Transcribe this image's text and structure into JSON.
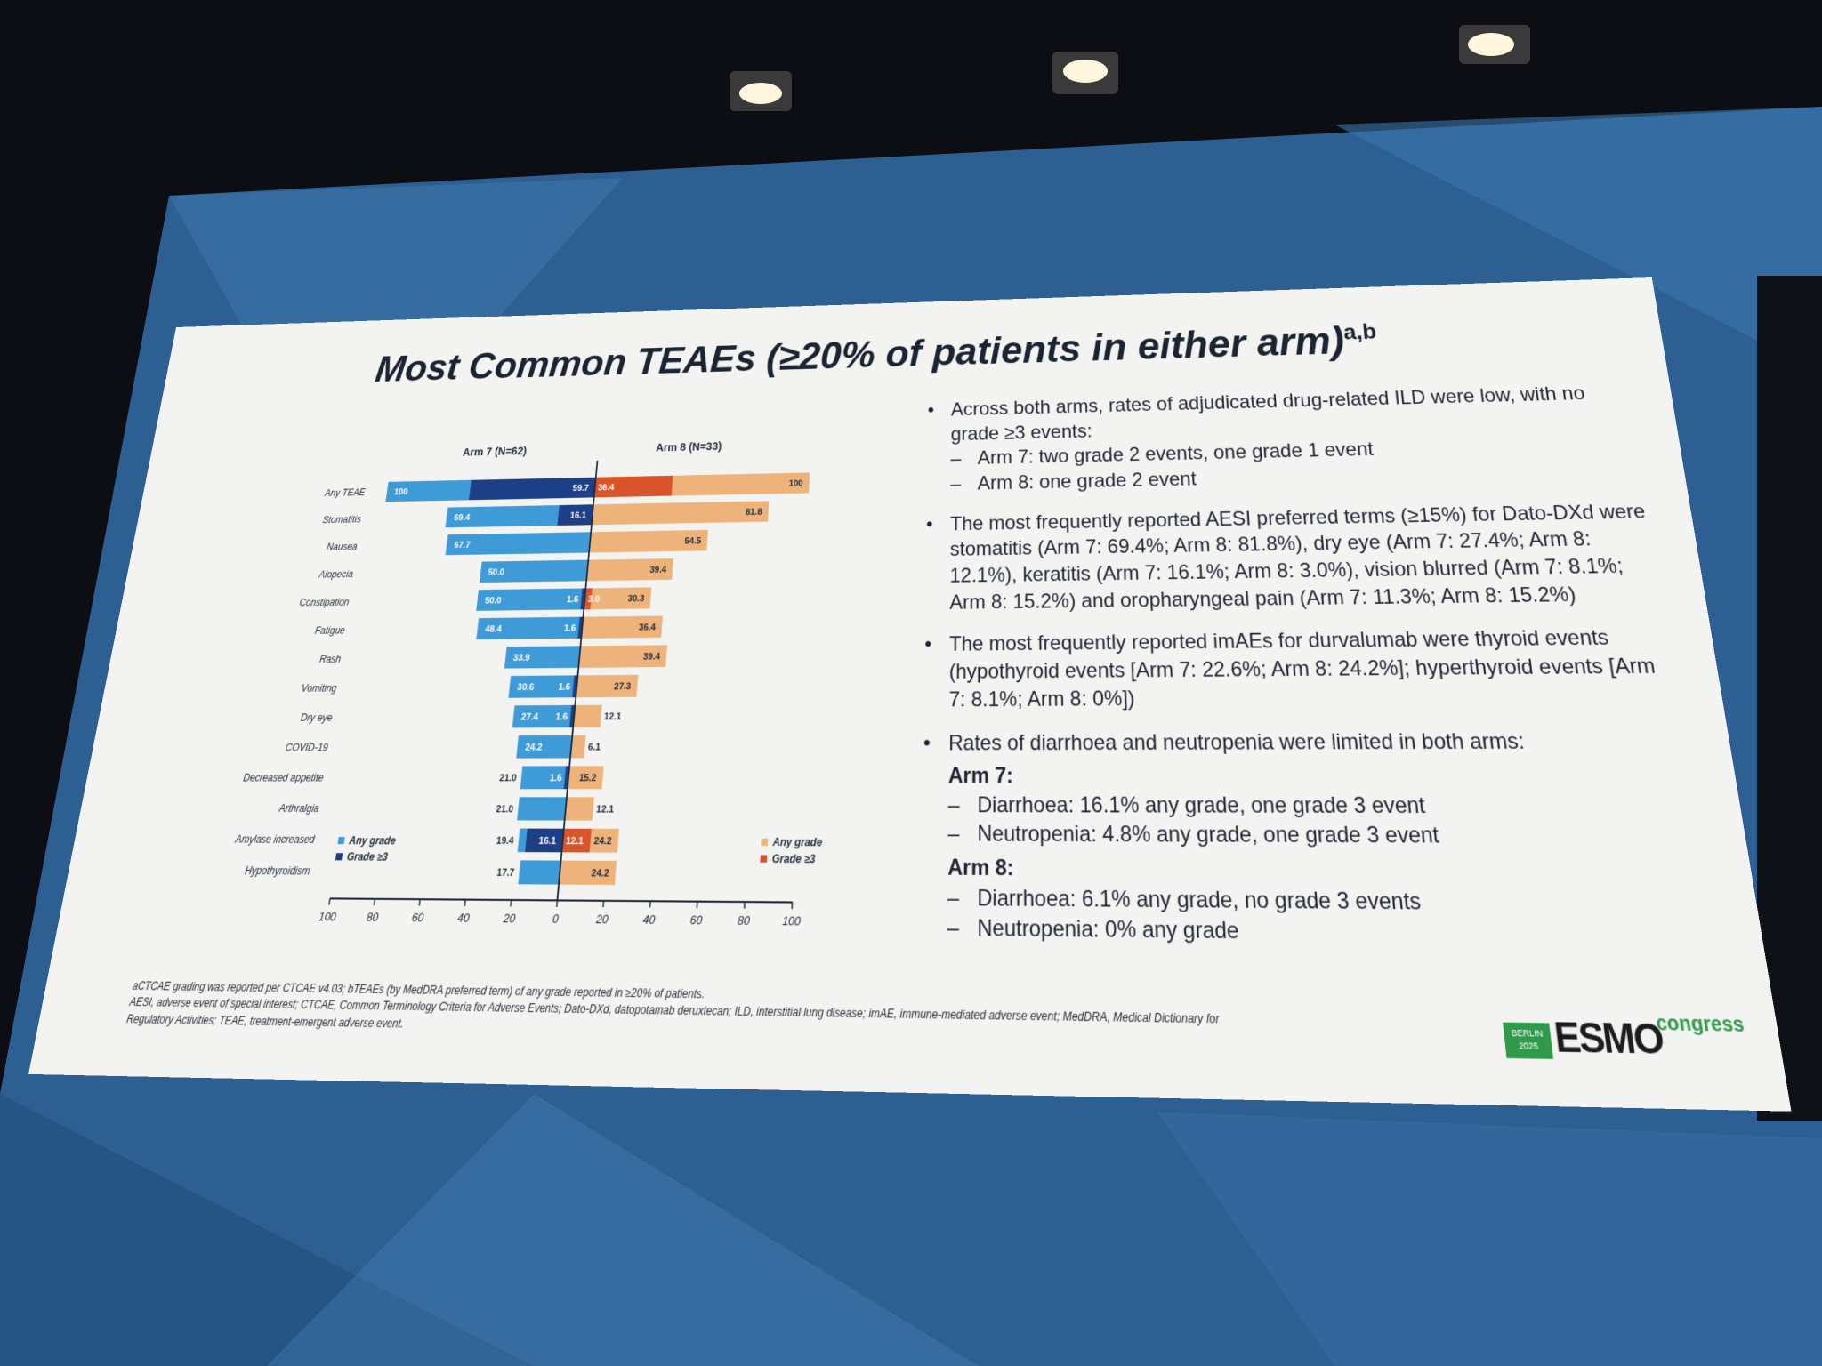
{
  "slide": {
    "title": "Most Common TEAEs (≥20% of patients in either arm)",
    "title_sup": "a,b",
    "bullets": [
      {
        "text": "Across both arms, rates of adjudicated drug-related ILD were low, with no grade ≥3 events:",
        "subs": [
          "Arm 7: two grade 2 events, one grade 1 event",
          "Arm 8: one grade 2 event"
        ]
      },
      {
        "text": "The most frequently reported AESI preferred terms (≥15%) for Dato-DXd were stomatitis (Arm 7: 69.4%; Arm 8: 81.8%), dry eye (Arm 7: 27.4%; Arm 8: 12.1%), keratitis (Arm 7: 16.1%; Arm 8: 3.0%), vision blurred (Arm 7: 8.1%; Arm 8: 15.2%) and oropharyngeal pain (Arm 7: 11.3%; Arm 8: 15.2%)",
        "subs": []
      },
      {
        "text": "The most frequently reported imAEs for durvalumab were thyroid events (hypothyroid events [Arm 7: 22.6%; Arm 8: 24.2%]; hyperthyroid events [Arm 7: 8.1%; Arm 8: 0%])",
        "subs": []
      }
    ],
    "bullet4": {
      "text": "Rates of diarrhoea and neutropenia were limited in both arms:",
      "arm7_heading": "Arm 7:",
      "arm7_items": [
        "Diarrhoea: 16.1% any grade, one grade 3 event",
        "Neutropenia: 4.8% any grade, one grade 3 event"
      ],
      "arm8_heading": "Arm 8:",
      "arm8_items": [
        "Diarrhoea: 6.1% any grade, no grade 3 events",
        "Neutropenia: 0% any grade"
      ]
    },
    "footnote1": "aCTCAE grading was reported per CTCAE v4.03; bTEAEs (by MedDRA preferred term) of any grade reported in ≥20% of patients.",
    "footnote2": "AESI, adverse event of special interest; CTCAE, Common Terminology Criteria for Adverse Events; Dato-DXd, datopotamab deruxtecan; ILD, interstitial lung disease; imAE, immune-mediated adverse event; MedDRA, Medical Dictionary for Regulatory Activities; TEAE, treatment-emergent adverse event.",
    "logo": {
      "badge_line1": "BERLIN",
      "badge_line2": "2025",
      "name": "ESMO",
      "suffix": "congress"
    }
  },
  "colors": {
    "arm7_any": "#3f9ad8",
    "arm7_g3": "#1d3f86",
    "arm8_any": "#eeb37a",
    "arm8_g3": "#d9542a",
    "axis": "#1f2a3a"
  },
  "chart_data": {
    "type": "bar",
    "orientation": "horizontal-butterfly",
    "left_label": "Arm 7 (N=62)",
    "right_label": "Arm 8 (N=33)",
    "categories": [
      "Any TEAE",
      "Stomatitis",
      "Nausea",
      "Alopecia",
      "Constipation",
      "Fatigue",
      "Rash",
      "Vomiting",
      "Dry eye",
      "COVID-19",
      "Decreased appetite",
      "Arthralgia",
      "Amylase increased",
      "Hypothyroidism"
    ],
    "series": [
      {
        "name": "Arm 7 Any grade",
        "values": [
          100,
          69.4,
          67.7,
          50.0,
          50.0,
          48.4,
          33.9,
          30.6,
          27.4,
          24.2,
          21.0,
          21.0,
          19.4,
          17.7
        ],
        "labels": [
          "100",
          "69.4",
          "67.7",
          "50.0",
          "50.0",
          "48.4",
          "33.9",
          "30.6",
          "27.4",
          "24.2",
          "21.0",
          "21.0",
          "19.4",
          "17.7"
        ]
      },
      {
        "name": "Arm 7 Grade ≥3",
        "values": [
          59.7,
          16.1,
          0,
          0,
          1.6,
          1.6,
          0,
          1.6,
          1.6,
          0,
          1.6,
          0,
          16.1,
          0
        ],
        "labels": [
          "59.7",
          "16.1",
          "",
          "",
          "1.6",
          "1.6",
          "",
          "1.6",
          "1.6",
          "",
          "1.6",
          "",
          "16.1",
          ""
        ]
      },
      {
        "name": "Arm 8 Any grade",
        "values": [
          100,
          81.8,
          54.5,
          39.4,
          30.3,
          36.4,
          39.4,
          27.3,
          12.1,
          6.1,
          15.2,
          12.1,
          24.2,
          24.2
        ],
        "labels": [
          "100",
          "81.8",
          "54.5",
          "39.4",
          "30.3",
          "36.4",
          "39.4",
          "27.3",
          "12.1",
          "6.1",
          "15.2",
          "12.1",
          "24.2",
          "24.2"
        ]
      },
      {
        "name": "Arm 8 Grade ≥3",
        "values": [
          36.4,
          0,
          0,
          0,
          3.0,
          0,
          0,
          0,
          0,
          0,
          0,
          0,
          12.1,
          0
        ],
        "labels": [
          "36.4",
          "",
          "",
          "",
          "3.0",
          "",
          "",
          "",
          "",
          "",
          "",
          "",
          "12.1",
          ""
        ]
      }
    ],
    "xticks": [
      "100",
      "80",
      "60",
      "40",
      "20",
      "0",
      "20",
      "40",
      "60",
      "80",
      "100"
    ],
    "xlim": [
      -100,
      100
    ],
    "legend_left": [
      "Any grade",
      "Grade ≥3"
    ],
    "legend_right": [
      "Any grade",
      "Grade ≥3"
    ]
  }
}
